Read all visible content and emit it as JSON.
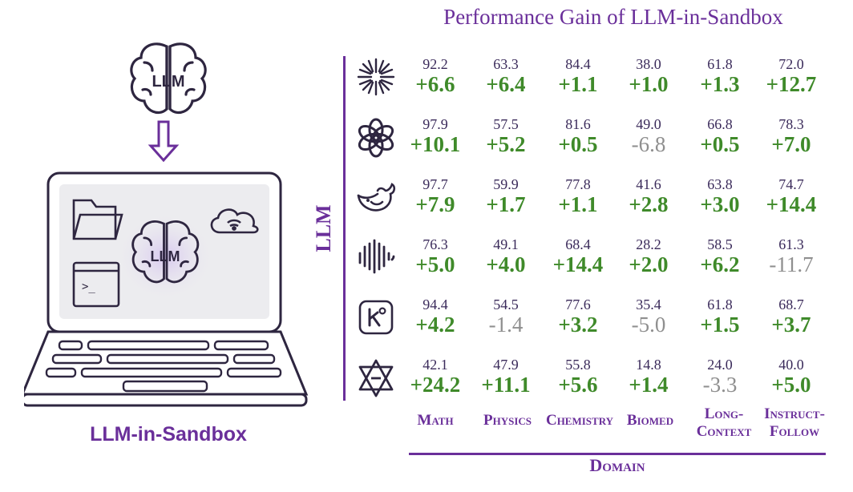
{
  "title": "Performance Gain of LLM-in-Sandbox",
  "left": {
    "brain_text": "LLM",
    "laptop_brain_text": "LLM",
    "terminal_prompt": ">_",
    "caption": "LLM-in-Sandbox"
  },
  "axes": {
    "llm_label": "LLM",
    "domain_label": "Domain"
  },
  "domains": [
    {
      "line1": "Math",
      "line2": ""
    },
    {
      "line1": "Physics",
      "line2": ""
    },
    {
      "line1": "Chemistry",
      "line2": ""
    },
    {
      "line1": "Biomed",
      "line2": ""
    },
    {
      "line1": "Long-",
      "line2": "Context"
    },
    {
      "line1": "Instruct-",
      "line2": "Follow"
    }
  ],
  "models": [
    {
      "icon": "sparkle-burst-icon",
      "values": [
        {
          "base": "92.2",
          "gain": "+6.6"
        },
        {
          "base": "63.3",
          "gain": "+6.4"
        },
        {
          "base": "84.4",
          "gain": "+1.1"
        },
        {
          "base": "38.0",
          "gain": "+1.0"
        },
        {
          "base": "61.8",
          "gain": "+1.3"
        },
        {
          "base": "72.0",
          "gain": "+12.7"
        }
      ]
    },
    {
      "icon": "openai-knot-icon",
      "values": [
        {
          "base": "97.9",
          "gain": "+10.1"
        },
        {
          "base": "57.5",
          "gain": "+5.2"
        },
        {
          "base": "81.6",
          "gain": "+0.5"
        },
        {
          "base": "49.0",
          "gain": "-6.8"
        },
        {
          "base": "66.8",
          "gain": "+0.5"
        },
        {
          "base": "78.3",
          "gain": "+7.0"
        }
      ]
    },
    {
      "icon": "whale-icon",
      "values": [
        {
          "base": "97.7",
          "gain": "+7.9"
        },
        {
          "base": "59.9",
          "gain": "+1.7"
        },
        {
          "base": "77.8",
          "gain": "+1.1"
        },
        {
          "base": "41.6",
          "gain": "+2.8"
        },
        {
          "base": "63.8",
          "gain": "+3.0"
        },
        {
          "base": "74.7",
          "gain": "+14.4"
        }
      ]
    },
    {
      "icon": "waveform-icon",
      "values": [
        {
          "base": "76.3",
          "gain": "+5.0"
        },
        {
          "base": "49.1",
          "gain": "+4.0"
        },
        {
          "base": "68.4",
          "gain": "+14.4"
        },
        {
          "base": "28.2",
          "gain": "+2.0"
        },
        {
          "base": "58.5",
          "gain": "+6.2"
        },
        {
          "base": "61.3",
          "gain": "-11.7"
        }
      ]
    },
    {
      "icon": "k-square-icon",
      "values": [
        {
          "base": "94.4",
          "gain": "+4.2"
        },
        {
          "base": "54.5",
          "gain": "-1.4"
        },
        {
          "base": "77.6",
          "gain": "+3.2"
        },
        {
          "base": "35.4",
          "gain": "-5.0"
        },
        {
          "base": "61.8",
          "gain": "+1.5"
        },
        {
          "base": "68.7",
          "gain": "+3.7"
        }
      ]
    },
    {
      "icon": "triangle-star-icon",
      "values": [
        {
          "base": "42.1",
          "gain": "+24.2"
        },
        {
          "base": "47.9",
          "gain": "+11.1"
        },
        {
          "base": "55.8",
          "gain": "+5.6"
        },
        {
          "base": "14.8",
          "gain": "+1.4"
        },
        {
          "base": "24.0",
          "gain": "-3.3"
        },
        {
          "base": "40.0",
          "gain": "+5.0"
        }
      ]
    }
  ],
  "colors": {
    "accent": "#6a2f9a",
    "positive": "#3f8a2a",
    "negative": "#8f8f8f"
  }
}
